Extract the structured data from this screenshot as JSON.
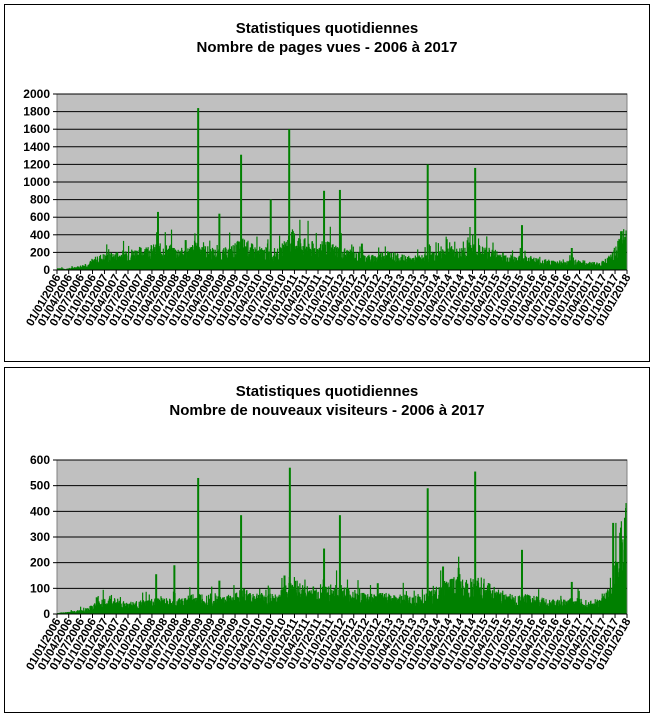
{
  "colors": {
    "plot_bg": "#c0c0c0",
    "series": "#008000",
    "grid": "#000000"
  },
  "chart_data": [
    {
      "type": "bar",
      "title": "Statistiques quotidiennes",
      "subtitle": "Nombre de pages vues - 2006 à 2017",
      "xlabel": "",
      "ylabel": "",
      "x_range": [
        "01/01/2006",
        "01/01/2018"
      ],
      "ylim": [
        0,
        2000
      ],
      "yticks": [
        0,
        200,
        400,
        600,
        800,
        1000,
        1200,
        1400,
        1600,
        1800,
        2000
      ],
      "xticks": [
        "01/01/2006",
        "01/04/2006",
        "01/07/2006",
        "01/10/2006",
        "01/01/2007",
        "01/04/2007",
        "01/07/2007",
        "01/10/2007",
        "01/01/2008",
        "01/04/2008",
        "01/07/2008",
        "01/10/2008",
        "01/01/2009",
        "01/04/2009",
        "01/07/2009",
        "01/10/2009",
        "01/01/2010",
        "01/04/2010",
        "01/07/2010",
        "01/10/2010",
        "01/01/2011",
        "01/04/2011",
        "01/07/2011",
        "01/10/2011",
        "01/01/2012",
        "01/04/2012",
        "01/07/2012",
        "01/10/2012",
        "01/01/2013",
        "01/04/2013",
        "01/07/2013",
        "01/10/2013",
        "01/01/2014",
        "01/04/2014",
        "01/07/2014",
        "01/10/2014",
        "01/01/2015",
        "01/04/2015",
        "01/07/2015",
        "01/10/2015",
        "01/01/2016",
        "01/04/2016",
        "01/07/2016",
        "01/10/2016",
        "01/01/2017",
        "01/04/2017",
        "01/07/2017",
        "01/10/2017",
        "01/01/2018"
      ],
      "grid": true,
      "series": [
        {
          "values_dates": [
            "01/01/2006",
            "01/03/2006",
            "01/06/2006",
            "01/09/2006",
            "01/12/2006",
            "01/03/2007",
            "01/06/2007",
            "01/09/2007",
            "01/12/2007",
            "01/03/2008",
            "01/06/2008",
            "01/09/2008",
            "01/12/2008",
            "01/03/2009",
            "01/06/2009",
            "01/09/2009",
            "01/12/2009",
            "01/03/2010",
            "01/06/2010",
            "01/09/2010",
            "01/12/2010",
            "01/03/2011",
            "01/06/2011",
            "01/09/2011",
            "01/12/2011",
            "01/03/2012",
            "01/06/2012",
            "01/09/2012",
            "01/12/2012",
            "01/03/2013",
            "01/06/2013",
            "01/09/2013",
            "01/12/2013",
            "01/03/2014",
            "01/06/2014",
            "01/09/2014",
            "01/12/2014",
            "01/03/2015",
            "01/06/2015",
            "01/09/2015",
            "01/12/2015",
            "01/03/2016",
            "01/06/2016",
            "01/09/2016",
            "01/12/2016",
            "01/03/2017",
            "01/06/2017",
            "01/09/2017",
            "01/12/2017"
          ],
          "values": [
            20,
            10,
            30,
            60,
            130,
            140,
            160,
            180,
            200,
            210,
            200,
            170,
            220,
            190,
            160,
            200,
            260,
            190,
            180,
            170,
            330,
            260,
            220,
            230,
            200,
            160,
            130,
            120,
            170,
            130,
            110,
            120,
            140,
            210,
            170,
            220,
            190,
            170,
            140,
            110,
            120,
            90,
            80,
            70,
            90,
            70,
            60,
            130,
            330
          ],
          "peaks": [
            {
              "date": "15/02/2008",
              "value": 660
            },
            {
              "date": "15/09/2008",
              "value": 340
            },
            {
              "date": "20/12/2008",
              "value": 1840
            },
            {
              "date": "01/06/2009",
              "value": 640
            },
            {
              "date": "15/11/2009",
              "value": 1310
            },
            {
              "date": "01/07/2010",
              "value": 800
            },
            {
              "date": "20/11/2010",
              "value": 1600
            },
            {
              "date": "15/08/2011",
              "value": 900
            },
            {
              "date": "15/12/2011",
              "value": 910
            },
            {
              "date": "01/06/2012",
              "value": 300
            },
            {
              "date": "20/10/2013",
              "value": 1200
            },
            {
              "date": "15/03/2014",
              "value": 350
            },
            {
              "date": "20/10/2014",
              "value": 1160
            },
            {
              "date": "15/10/2015",
              "value": 510
            },
            {
              "date": "01/11/2016",
              "value": 250
            },
            {
              "date": "15/11/2017",
              "value": 440
            }
          ]
        }
      ]
    },
    {
      "type": "bar",
      "title": "Statistiques quotidiennes",
      "subtitle": "Nombre de nouveaux visiteurs -  2006 à 2017",
      "xlabel": "",
      "ylabel": "",
      "x_range": [
        "01/01/2006",
        "01/01/2018"
      ],
      "ylim": [
        0,
        600
      ],
      "yticks": [
        0,
        100,
        200,
        300,
        400,
        500,
        600
      ],
      "xticks": [
        "01/01/2006",
        "01/04/2006",
        "01/07/2006",
        "01/10/2006",
        "01/01/2007",
        "01/04/2007",
        "01/07/2007",
        "01/10/2007",
        "01/01/2008",
        "01/04/2008",
        "01/07/2008",
        "01/10/2008",
        "01/01/2009",
        "01/04/2009",
        "01/07/2009",
        "01/10/2009",
        "01/01/2010",
        "01/04/2010",
        "01/07/2010",
        "01/10/2010",
        "01/01/2011",
        "01/04/2011",
        "01/07/2011",
        "01/10/2011",
        "01/01/2012",
        "01/04/2012",
        "01/07/2012",
        "01/10/2012",
        "01/01/2013",
        "01/04/2013",
        "01/07/2013",
        "01/10/2013",
        "01/01/2014",
        "01/04/2014",
        "01/07/2014",
        "01/10/2014",
        "01/01/2015",
        "01/04/2015",
        "01/07/2015",
        "01/10/2015",
        "01/01/2016",
        "01/04/2016",
        "01/07/2016",
        "01/10/2016",
        "01/01/2017",
        "01/04/2017",
        "01/07/2017",
        "01/10/2017",
        "01/01/2018"
      ],
      "grid": true,
      "series": [
        {
          "values_dates": [
            "01/01/2006",
            "01/03/2006",
            "01/06/2006",
            "01/09/2006",
            "01/12/2006",
            "01/03/2007",
            "01/06/2007",
            "01/09/2007",
            "01/12/2007",
            "01/03/2008",
            "01/06/2008",
            "01/09/2008",
            "01/12/2008",
            "01/03/2009",
            "01/06/2009",
            "01/09/2009",
            "01/12/2009",
            "01/03/2010",
            "01/06/2010",
            "01/09/2010",
            "01/12/2010",
            "01/03/2011",
            "01/06/2011",
            "01/09/2011",
            "01/12/2011",
            "01/03/2012",
            "01/06/2012",
            "01/09/2012",
            "01/12/2012",
            "01/03/2013",
            "01/06/2013",
            "01/09/2013",
            "01/12/2013",
            "01/03/2014",
            "01/06/2014",
            "01/09/2014",
            "01/12/2014",
            "01/03/2015",
            "01/06/2015",
            "01/09/2015",
            "01/12/2015",
            "01/03/2016",
            "01/06/2016",
            "01/09/2016",
            "01/12/2016",
            "01/03/2017",
            "01/06/2017",
            "01/09/2017",
            "01/12/2017"
          ],
          "values": [
            5,
            5,
            10,
            20,
            40,
            45,
            35,
            35,
            40,
            45,
            40,
            45,
            60,
            55,
            50,
            55,
            70,
            60,
            55,
            60,
            110,
            80,
            75,
            80,
            80,
            70,
            60,
            55,
            60,
            55,
            50,
            50,
            70,
            90,
            110,
            100,
            100,
            80,
            60,
            50,
            55,
            45,
            40,
            40,
            45,
            40,
            40,
            80,
            300
          ],
          "peaks": [
            {
              "date": "01/11/2006",
              "value": 65
            },
            {
              "date": "01/02/2008",
              "value": 155
            },
            {
              "date": "20/06/2008",
              "value": 190
            },
            {
              "date": "20/12/2008",
              "value": 530
            },
            {
              "date": "01/06/2009",
              "value": 130
            },
            {
              "date": "15/11/2009",
              "value": 385
            },
            {
              "date": "15/10/2010",
              "value": 150
            },
            {
              "date": "25/11/2010",
              "value": 570
            },
            {
              "date": "15/08/2011",
              "value": 255
            },
            {
              "date": "15/12/2011",
              "value": 385
            },
            {
              "date": "01/10/2012",
              "value": 120
            },
            {
              "date": "20/10/2013",
              "value": 490
            },
            {
              "date": "15/02/2014",
              "value": 185
            },
            {
              "date": "15/06/2014",
              "value": 180
            },
            {
              "date": "20/10/2014",
              "value": 555
            },
            {
              "date": "15/10/2015",
              "value": 250
            },
            {
              "date": "01/11/2016",
              "value": 125
            },
            {
              "date": "15/09/2017",
              "value": 355
            },
            {
              "date": "15/12/2017",
              "value": 375
            }
          ]
        }
      ]
    }
  ]
}
